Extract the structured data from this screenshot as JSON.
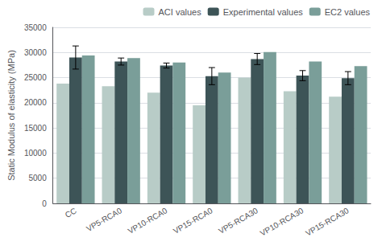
{
  "chart_data": {
    "type": "bar",
    "ylabel": "Static Modulus of elasticity (MPa)",
    "categories": [
      "CC",
      "VP5-RCA0",
      "VP10-RCA0",
      "VP15-RCA0",
      "VP5-RCA30",
      "VP10-RCA30",
      "VP15-RCA30"
    ],
    "series": [
      {
        "name": "ACI values",
        "color": "#b8ccc7",
        "values": [
          23800,
          23300,
          22000,
          19500,
          25000,
          22300,
          21200
        ]
      },
      {
        "name": "Experimental values",
        "color": "#3d5457",
        "values": [
          29000,
          28200,
          27400,
          25300,
          28700,
          25400,
          24900
        ],
        "errors": [
          2300,
          700,
          500,
          1700,
          1100,
          1000,
          1300
        ]
      },
      {
        "name": "EC2 values",
        "color": "#7a9e99",
        "values": [
          29400,
          28900,
          28000,
          26000,
          30100,
          28200,
          27300
        ]
      }
    ],
    "ylim": [
      0,
      35000
    ],
    "yticks": [
      0,
      5000,
      10000,
      15000,
      20000,
      25000,
      30000,
      35000
    ],
    "grid": true,
    "legend": "upper right"
  }
}
